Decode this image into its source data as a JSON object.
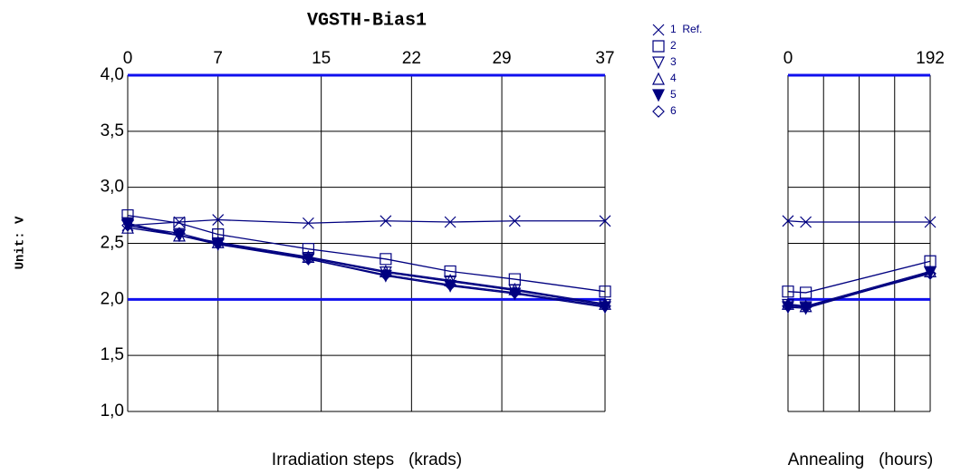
{
  "chart_data": [
    {
      "type": "line",
      "title": "VGSTH-Bias1",
      "y_label": "Unit: V",
      "x_label": "Irradiation steps   (krads)",
      "x": [
        0,
        4,
        7,
        14,
        20,
        25,
        30,
        37
      ],
      "xlim": [
        0,
        37
      ],
      "xticks": [
        0,
        7,
        15,
        22,
        29,
        37
      ],
      "ylim": [
        1.0,
        4.0
      ],
      "yticks": [
        {
          "value": 1.0,
          "label": "1,0"
        },
        {
          "value": 1.5,
          "label": "1,5"
        },
        {
          "value": 2.0,
          "label": "2,0"
        },
        {
          "value": 2.5,
          "label": "2,5"
        },
        {
          "value": 3.0,
          "label": "3,0"
        },
        {
          "value": 3.5,
          "label": "3,5"
        },
        {
          "value": 4.0,
          "label": "4,0"
        }
      ],
      "limits": [
        2.0,
        4.0
      ],
      "limit_color": "#1010ee",
      "grid": true,
      "series": [
        {
          "name": "1  Ref.",
          "marker": "x",
          "color": "#000080",
          "values": [
            2.66,
            2.69,
            2.71,
            2.68,
            2.7,
            2.69,
            2.7,
            2.7
          ]
        },
        {
          "name": "2",
          "marker": "square",
          "color": "#000080",
          "values": [
            2.75,
            2.68,
            2.58,
            2.45,
            2.36,
            2.25,
            2.18,
            2.07
          ]
        },
        {
          "name": "3",
          "marker": "triangle-down",
          "color": "#000080",
          "values": [
            2.66,
            2.57,
            2.5,
            2.37,
            2.24,
            2.16,
            2.08,
            1.95
          ]
        },
        {
          "name": "4",
          "marker": "triangle-up",
          "color": "#000080",
          "values": [
            2.64,
            2.57,
            2.51,
            2.38,
            2.25,
            2.17,
            2.09,
            1.96
          ]
        },
        {
          "name": "5",
          "marker": "triangle-down-filled",
          "color": "#000080",
          "values": [
            2.68,
            2.57,
            2.49,
            2.36,
            2.21,
            2.12,
            2.05,
            1.93
          ]
        },
        {
          "name": "6",
          "marker": "diamond",
          "color": "#000080",
          "values": [
            2.66,
            2.59,
            2.5,
            2.36,
            2.22,
            2.13,
            2.06,
            1.94
          ]
        }
      ]
    },
    {
      "type": "line",
      "x_label": "Annealing   (hours)",
      "x": [
        0,
        24,
        192
      ],
      "xlim": [
        0,
        192
      ],
      "xticks": [
        0,
        192
      ],
      "xgrid": [
        48,
        96,
        144
      ],
      "ylim": [
        1.0,
        4.0
      ],
      "ygrid": [
        1.0,
        1.5,
        2.0,
        2.5,
        3.0,
        3.5,
        4.0
      ],
      "limits": [
        2.0,
        4.0
      ],
      "limit_color": "#1010ee",
      "grid": true,
      "series": [
        {
          "marker": "x",
          "color": "#000080",
          "values": [
            2.7,
            2.69,
            2.69
          ]
        },
        {
          "marker": "square",
          "color": "#000080",
          "values": [
            2.07,
            2.06,
            2.34
          ]
        },
        {
          "marker": "triangle-down",
          "color": "#000080",
          "values": [
            1.95,
            1.93,
            2.24
          ]
        },
        {
          "marker": "triangle-up",
          "color": "#000080",
          "values": [
            1.96,
            1.94,
            2.25
          ]
        },
        {
          "marker": "triangle-down-filled",
          "color": "#000080",
          "values": [
            1.93,
            1.92,
            2.24
          ]
        },
        {
          "marker": "diamond",
          "color": "#000080",
          "values": [
            1.94,
            1.93,
            2.23
          ]
        }
      ]
    }
  ]
}
